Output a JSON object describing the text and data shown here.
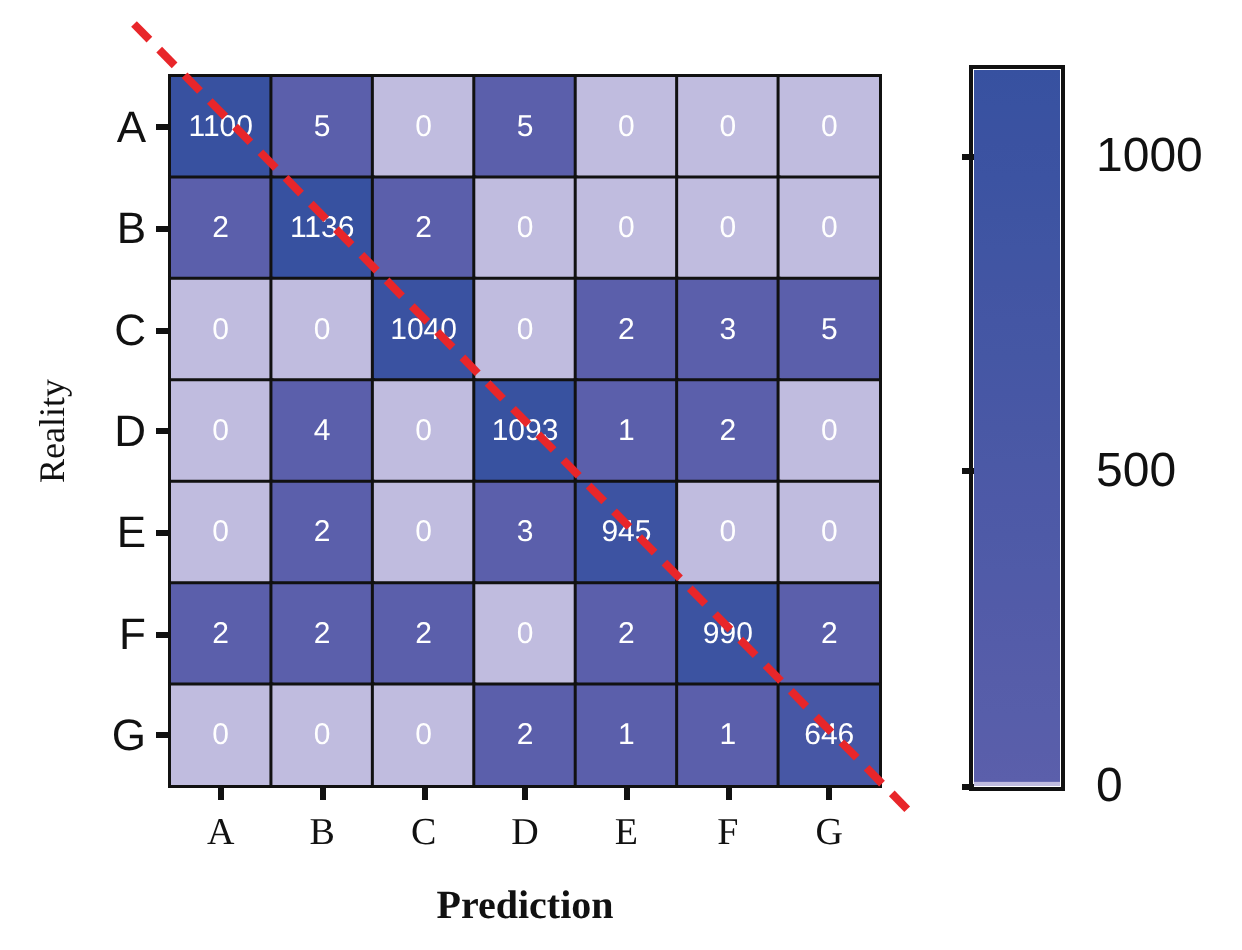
{
  "chart_data": {
    "type": "heatmap",
    "xlabel": "Prediction",
    "ylabel": "Reality",
    "categories": [
      "A",
      "B",
      "C",
      "D",
      "E",
      "F",
      "G"
    ],
    "y_categories": [
      "A",
      "B",
      "C",
      "D",
      "E",
      "F",
      "G"
    ],
    "cells": [
      [
        1100,
        5,
        0,
        5,
        0,
        0,
        0
      ],
      [
        2,
        1136,
        2,
        0,
        0,
        0,
        0
      ],
      [
        0,
        0,
        1040,
        0,
        2,
        3,
        5
      ],
      [
        0,
        4,
        0,
        1093,
        1,
        2,
        0
      ],
      [
        0,
        2,
        0,
        3,
        945,
        0,
        0
      ],
      [
        2,
        2,
        2,
        0,
        2,
        990,
        2
      ],
      [
        0,
        0,
        0,
        2,
        1,
        1,
        646
      ]
    ],
    "clim": [
      0,
      1136
    ],
    "cticks": [
      0,
      500,
      1000
    ],
    "data_labels": true
  }
}
